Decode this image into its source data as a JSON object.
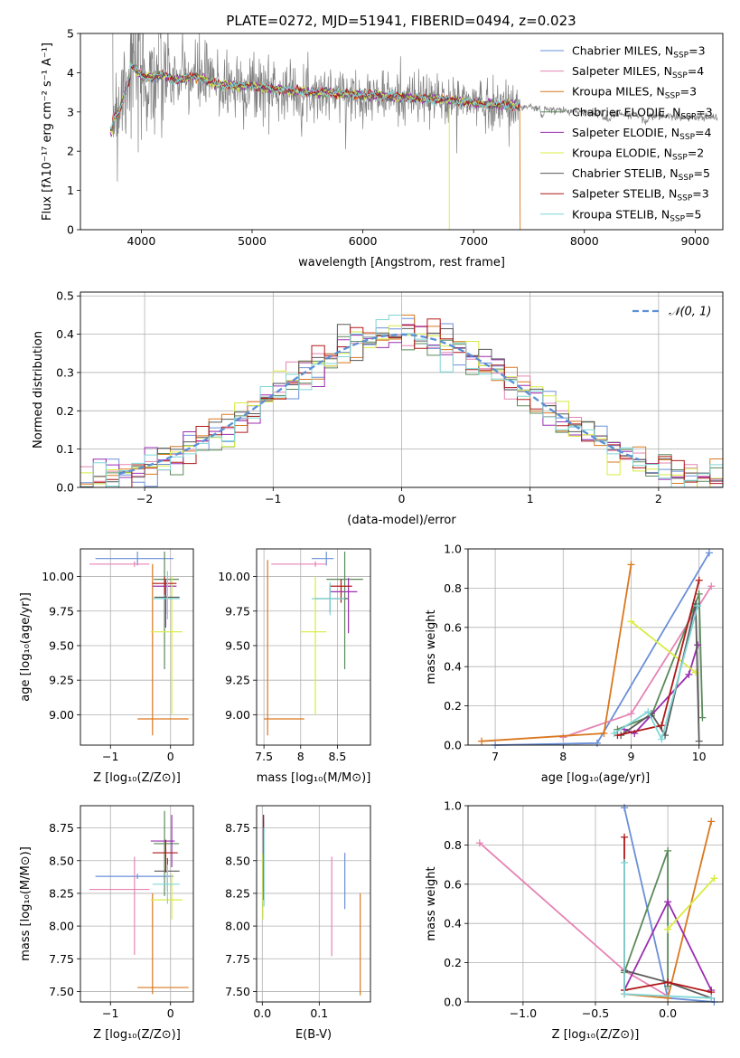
{
  "figure_title": "PLATE=0272, MJD=51941, FIBERID=0494, z=0.023",
  "colors": {
    "Chabrier MILES": "#6a8fd8",
    "Salpeter MILES": "#e683b4",
    "Kroupa MILES": "#d9781f",
    "Chabrier ELODIE": "#5b8a5b",
    "Salpeter ELODIE": "#9a2fb0",
    "Kroupa ELODIE": "#d8ec40",
    "Chabrier STELIB": "#5a5a5a",
    "Salpeter STELIB": "#b01818",
    "Kroupa STELIB": "#7fd6d6",
    "data": "#808080",
    "normal": "#5b8fd6",
    "grid": "#b0b0b0"
  },
  "chart_data": [
    {
      "id": "spectrum",
      "type": "line",
      "title": "PLATE=0272, MJD=51941, FIBERID=0494, z=0.023",
      "xlabel": "wavelength [Angstrom, rest frame]",
      "ylabel": "Flux [fλ10⁻¹⁷ erg cm⁻² s⁻¹ A⁻¹]",
      "xlim": [
        3450,
        9250
      ],
      "ylim": [
        0,
        5
      ],
      "xticks": [
        4000,
        5000,
        6000,
        7000,
        8000,
        9000
      ],
      "yticks": [
        0,
        1,
        2,
        3,
        4,
        5
      ],
      "grid": false,
      "legend_position": "top-right",
      "data_series": {
        "name": "",
        "x": [
          3740,
          3800,
          3850,
          3900,
          3950,
          4000,
          4100,
          4200,
          4300,
          4500,
          4700,
          5000,
          5300,
          5600,
          5900,
          6200,
          6500,
          6800,
          7100,
          7400,
          7700,
          8000,
          8300,
          8600,
          8900,
          9200
        ],
        "y": [
          3.1,
          3.3,
          3.8,
          4.2,
          4.1,
          3.9,
          3.9,
          3.95,
          3.8,
          3.9,
          3.7,
          3.65,
          3.55,
          3.5,
          3.45,
          3.4,
          3.35,
          3.3,
          3.2,
          3.15,
          3.05,
          3.0,
          2.95,
          2.9,
          2.88,
          2.85
        ]
      },
      "legend": [
        {
          "label": "Chabrier MILES, N",
          "sub": "SSP",
          "suffix": "=3"
        },
        {
          "label": "Salpeter MILES, N",
          "sub": "SSP",
          "suffix": "=4"
        },
        {
          "label": "Kroupa MILES, N",
          "sub": "SSP",
          "suffix": "=3"
        },
        {
          "label": "Chabrier ELODIE, N",
          "sub": "SSP",
          "suffix": "=3"
        },
        {
          "label": "Salpeter ELODIE, N",
          "sub": "SSP",
          "suffix": "=4"
        },
        {
          "label": "Kroupa ELODIE, N",
          "sub": "SSP",
          "suffix": "=2"
        },
        {
          "label": "Chabrier STELIB, N",
          "sub": "SSP",
          "suffix": "=5"
        },
        {
          "label": "Salpeter STELIB, N",
          "sub": "SSP",
          "suffix": "=3"
        },
        {
          "label": "Kroupa STELIB, N",
          "sub": "SSP",
          "suffix": "=5"
        }
      ],
      "model_series_names": [
        "Chabrier MILES",
        "Salpeter MILES",
        "Kroupa MILES",
        "Chabrier ELODIE",
        "Salpeter ELODIE",
        "Kroupa ELODIE",
        "Chabrier STELIB",
        "Salpeter STELIB",
        "Kroupa STELIB"
      ]
    },
    {
      "id": "residuals",
      "type": "histogram",
      "xlabel": "(data-model)/error",
      "ylabel": "Normed distribution",
      "xlim": [
        -2.5,
        2.5
      ],
      "ylim": [
        0,
        0.51
      ],
      "xticks": [
        -2,
        -1,
        0,
        1,
        2
      ],
      "yticks": [
        0.0,
        0.1,
        0.2,
        0.3,
        0.4,
        0.5
      ],
      "grid": true,
      "legend_position": "top-right",
      "legend_label": "𝒩(0, 1)",
      "bin_width": 0.1,
      "normal": {
        "mean": 0,
        "sigma": 1
      }
    },
    {
      "id": "age-vs-Z",
      "type": "errorbar",
      "xlabel": "Z [log₁₀(Z/Z⊙)]",
      "ylabel": "age  [log₁₀(age/yr)]",
      "xlim": [
        -1.5,
        0.38
      ],
      "ylim": [
        8.78,
        10.2
      ],
      "xticks": [
        -1,
        0
      ],
      "yticks": [
        9.0,
        9.25,
        9.5,
        9.75,
        10.0
      ],
      "grid": true,
      "points": [
        {
          "series": "Chabrier MILES",
          "x": -0.55,
          "xerr": [
            0.7,
            0.6
          ],
          "y": 10.13,
          "yerr": [
            0.05,
            0.05
          ]
        },
        {
          "series": "Salpeter MILES",
          "x": -0.6,
          "xerr": [
            0.75,
            0.25
          ],
          "y": 10.09,
          "yerr": [
            0.02,
            0.02
          ]
        },
        {
          "series": "Kroupa MILES",
          "x": -0.3,
          "xerr": [
            0.25,
            0.6
          ],
          "y": 8.97,
          "yerr": [
            0.12,
            1.12
          ]
        },
        {
          "series": "Chabrier ELODIE",
          "x": -0.1,
          "xerr": [
            0.18,
            0.24
          ],
          "y": 9.98,
          "yerr": [
            0.65,
            0.2
          ]
        },
        {
          "series": "Salpeter ELODIE",
          "x": -0.08,
          "xerr": [
            0.22,
            0.18
          ],
          "y": 9.93,
          "yerr": [
            0.3,
            0.05
          ]
        },
        {
          "series": "Kroupa ELODIE",
          "x": 0.02,
          "xerr": [
            0.35,
            0.18
          ],
          "y": 9.6,
          "yerr": [
            0.6,
            0.4
          ]
        },
        {
          "series": "Chabrier STELIB",
          "x": -0.05,
          "xerr": [
            0.22,
            0.2
          ],
          "y": 9.85,
          "yerr": [
            0.12,
            0.1
          ]
        },
        {
          "series": "Salpeter STELIB",
          "x": -0.1,
          "xerr": [
            0.2,
            0.2
          ],
          "y": 9.95,
          "yerr": [
            0.08,
            0.05
          ]
        },
        {
          "series": "Kroupa STELIB",
          "x": -0.05,
          "xerr": [
            0.25,
            0.2
          ],
          "y": 9.84,
          "yerr": [
            0.15,
            0.2
          ]
        }
      ]
    },
    {
      "id": "age-vs-mass",
      "type": "errorbar",
      "xlabel": "mass [log₁₀(M/M⊙)]",
      "ylabel": "",
      "xlim": [
        7.4,
        8.95
      ],
      "ylim": [
        8.78,
        10.2
      ],
      "xticks": [
        7.5,
        8.0,
        8.5
      ],
      "yticks": [
        9.0,
        9.25,
        9.5,
        9.75,
        10.0
      ],
      "grid": true,
      "points": [
        {
          "series": "Chabrier MILES",
          "x": 8.35,
          "xerr": [
            0.2,
            0.1
          ],
          "y": 10.13,
          "yerr": [
            0.05,
            0.05
          ]
        },
        {
          "series": "Salpeter MILES",
          "x": 8.2,
          "xerr": [
            0.6,
            0.15
          ],
          "y": 10.09,
          "yerr": [
            0.02,
            0.02
          ]
        },
        {
          "series": "Kroupa MILES",
          "x": 7.55,
          "xerr": [
            0.05,
            0.5
          ],
          "y": 8.97,
          "yerr": [
            0.12,
            1.15
          ]
        },
        {
          "series": "Chabrier ELODIE",
          "x": 8.6,
          "xerr": [
            0.25,
            0.25
          ],
          "y": 9.98,
          "yerr": [
            0.65,
            0.2
          ]
        },
        {
          "series": "Salpeter ELODIE",
          "x": 8.65,
          "xerr": [
            0.25,
            0.12
          ],
          "y": 9.89,
          "yerr": [
            0.3,
            0.1
          ]
        },
        {
          "series": "Kroupa ELODIE",
          "x": 8.2,
          "xerr": [
            0.2,
            0.15
          ],
          "y": 9.6,
          "yerr": [
            0.6,
            0.4
          ]
        },
        {
          "series": "Chabrier STELIB",
          "x": 8.4,
          "xerr": [
            0.2,
            0.25
          ],
          "y": 9.84,
          "yerr": [
            0.1,
            0.1
          ]
        },
        {
          "series": "Salpeter STELIB",
          "x": 8.55,
          "xerr": [
            0.15,
            0.15
          ],
          "y": 9.93,
          "yerr": [
            0.12,
            0.05
          ]
        },
        {
          "series": "Kroupa STELIB",
          "x": 8.4,
          "xerr": [
            0.25,
            0.2
          ],
          "y": 9.84,
          "yerr": [
            0.12,
            0.12
          ]
        }
      ]
    },
    {
      "id": "weight-vs-age",
      "type": "line",
      "xlabel": "age  [log₁₀(age/yr)]",
      "ylabel": "mass weight",
      "xlim": [
        6.6,
        10.35
      ],
      "ylim": [
        0,
        1
      ],
      "xticks": [
        7,
        8,
        9,
        10
      ],
      "yticks": [
        0.0,
        0.2,
        0.4,
        0.6,
        0.8,
        1.0
      ],
      "grid": true,
      "series": [
        {
          "name": "Chabrier MILES",
          "x": [
            7.0,
            8.5,
            10.15
          ],
          "y": [
            0.0,
            0.01,
            0.98
          ]
        },
        {
          "name": "Salpeter MILES",
          "x": [
            8.0,
            9.0,
            10.18
          ],
          "y": [
            0.04,
            0.16,
            0.81
          ]
        },
        {
          "name": "Kroupa MILES",
          "x": [
            6.8,
            8.6,
            9.0
          ],
          "y": [
            0.02,
            0.06,
            0.92
          ]
        },
        {
          "name": "Chabrier ELODIE",
          "x": [
            8.8,
            9.3,
            10.0,
            10.05
          ],
          "y": [
            0.08,
            0.15,
            0.77,
            0.14
          ]
        },
        {
          "name": "Salpeter ELODIE",
          "x": [
            8.9,
            9.05,
            9.85,
            9.98
          ],
          "y": [
            0.08,
            0.06,
            0.36,
            0.51
          ]
        },
        {
          "name": "Kroupa ELODIE",
          "x": [
            9.0,
            9.95
          ],
          "y": [
            0.63,
            0.37
          ]
        },
        {
          "name": "Chabrier STELIB",
          "x": [
            8.85,
            9.3,
            9.5,
            9.95,
            10.0
          ],
          "y": [
            0.05,
            0.16,
            0.05,
            0.72,
            0.02
          ]
        },
        {
          "name": "Salpeter STELIB",
          "x": [
            8.8,
            9.45,
            10.0
          ],
          "y": [
            0.05,
            0.1,
            0.84
          ]
        },
        {
          "name": "Kroupa STELIB",
          "x": [
            8.75,
            9.25,
            9.45,
            9.98
          ],
          "y": [
            0.06,
            0.17,
            0.03,
            0.71
          ]
        }
      ]
    },
    {
      "id": "mass-vs-Z",
      "type": "errorbar",
      "xlabel": "Z [log₁₀(Z/Z⊙)]",
      "ylabel": "mass [log₁₀(M/M⊙)]",
      "xlim": [
        -1.5,
        0.38
      ],
      "ylim": [
        7.42,
        8.92
      ],
      "xticks": [
        -1,
        0
      ],
      "yticks": [
        7.5,
        7.75,
        8.0,
        8.25,
        8.5,
        8.75
      ],
      "grid": true,
      "points": [
        {
          "series": "Chabrier MILES",
          "x": -0.55,
          "xerr": [
            0.7,
            0.6
          ],
          "y": 8.38,
          "yerr": [
            0.02,
            0.02
          ]
        },
        {
          "series": "Salpeter MILES",
          "x": -0.6,
          "xerr": [
            0.75,
            0.25
          ],
          "y": 8.28,
          "yerr": [
            0.5,
            0.25
          ]
        },
        {
          "series": "Kroupa MILES",
          "x": -0.3,
          "xerr": [
            0.25,
            0.6
          ],
          "y": 7.53,
          "yerr": [
            0.05,
            0.72
          ]
        },
        {
          "series": "Chabrier ELODIE",
          "x": -0.1,
          "xerr": [
            0.18,
            0.24
          ],
          "y": 8.63,
          "yerr": [
            0.4,
            0.25
          ]
        },
        {
          "series": "Salpeter ELODIE",
          "x": 0.02,
          "xerr": [
            0.35,
            0.05
          ],
          "y": 8.65,
          "yerr": [
            0.2,
            0.2
          ]
        },
        {
          "series": "Kroupa ELODIE",
          "x": 0.02,
          "xerr": [
            0.35,
            0.18
          ],
          "y": 8.2,
          "yerr": [
            0.15,
            0.2
          ]
        },
        {
          "series": "Chabrier STELIB",
          "x": -0.05,
          "xerr": [
            0.22,
            0.2
          ],
          "y": 8.42,
          "yerr": [
            0.15,
            0.1
          ]
        },
        {
          "series": "Salpeter STELIB",
          "x": -0.08,
          "xerr": [
            0.22,
            0.2
          ],
          "y": 8.56,
          "yerr": [
            0.15,
            0.1
          ]
        },
        {
          "series": "Kroupa STELIB",
          "x": -0.05,
          "xerr": [
            0.25,
            0.2
          ],
          "y": 8.32,
          "yerr": [
            0.15,
            0.15
          ]
        }
      ]
    },
    {
      "id": "mass-vs-ebv",
      "type": "errorbar",
      "xlabel": "E(B-V)",
      "ylabel": "",
      "xlim": [
        -0.01,
        0.19
      ],
      "ylim": [
        7.42,
        8.92
      ],
      "xticks": [
        0.0,
        0.1
      ],
      "xtick_labels": [
        "0.0",
        "0.1"
      ],
      "yticks": [
        7.5,
        7.75,
        8.0,
        8.25,
        8.5,
        8.75
      ],
      "grid": true,
      "points": [
        {
          "series": "Chabrier MILES",
          "x": 0.145,
          "xerr": [
            0,
            0
          ],
          "y": 8.38,
          "yerr": [
            0.25,
            0.18
          ]
        },
        {
          "series": "Salpeter MILES",
          "x": 0.122,
          "xerr": [
            0,
            0
          ],
          "y": 8.15,
          "yerr": [
            0.38,
            0.38
          ]
        },
        {
          "series": "Kroupa MILES",
          "x": 0.172,
          "xerr": [
            0,
            0
          ],
          "y": 7.85,
          "yerr": [
            0.38,
            0.4
          ]
        },
        {
          "series": "Chabrier ELODIE",
          "x": 0.002,
          "xerr": [
            0,
            0
          ],
          "y": 8.6,
          "yerr": [
            0.3,
            0.25
          ]
        },
        {
          "series": "Salpeter ELODIE",
          "x": 0.002,
          "xerr": [
            0,
            0
          ],
          "y": 8.75,
          "yerr": [
            0.1,
            0.1
          ]
        },
        {
          "series": "Kroupa ELODIE",
          "x": 0.001,
          "xerr": [
            0,
            0
          ],
          "y": 8.3,
          "yerr": [
            0.25,
            0.25
          ]
        },
        {
          "series": "Chabrier STELIB",
          "x": 0.002,
          "xerr": [
            0,
            0
          ],
          "y": 8.5,
          "yerr": [
            0.3,
            0.3
          ]
        },
        {
          "series": "Salpeter STELIB",
          "x": 0.002,
          "xerr": [
            0,
            0
          ],
          "y": 8.7,
          "yerr": [
            0.15,
            0.15
          ]
        },
        {
          "series": "Kroupa STELIB",
          "x": 0.003,
          "xerr": [
            0,
            0
          ],
          "y": 8.45,
          "yerr": [
            0.3,
            0.3
          ]
        }
      ]
    },
    {
      "id": "weight-vs-Z",
      "type": "line",
      "xlabel": "Z [log₁₀(Z/Z⊙)]",
      "ylabel": "mass weight",
      "xlim": [
        -1.38,
        0.38
      ],
      "ylim": [
        0,
        1
      ],
      "xticks": [
        -1.0,
        -0.5,
        0.0
      ],
      "xtick_labels": [
        "−1.0",
        "−0.5",
        "0.0"
      ],
      "yticks": [
        0.0,
        0.2,
        0.4,
        0.6,
        0.8,
        1.0
      ],
      "grid": true,
      "series": [
        {
          "name": "Chabrier MILES",
          "x": [
            -0.3,
            0.0,
            0.32
          ],
          "y": [
            0.99,
            0.02,
            0.0
          ]
        },
        {
          "name": "Salpeter MILES",
          "x": [
            -1.3,
            -0.3,
            0.0
          ],
          "y": [
            0.81,
            0.16,
            0.03
          ]
        },
        {
          "name": "Kroupa MILES",
          "x": [
            -0.3,
            0.0,
            0.3
          ],
          "y": [
            0.04,
            0.02,
            0.92
          ]
        },
        {
          "name": "Chabrier ELODIE",
          "x": [
            -0.3,
            0.0,
            0.0
          ],
          "y": [
            0.15,
            0.77,
            0.08
          ]
        },
        {
          "name": "Salpeter ELODIE",
          "x": [
            -0.3,
            0.0,
            0.3
          ],
          "y": [
            0.06,
            0.51,
            0.06
          ]
        },
        {
          "name": "Kroupa ELODIE",
          "x": [
            0.0,
            0.32
          ],
          "y": [
            0.37,
            0.63
          ]
        },
        {
          "name": "Chabrier STELIB",
          "x": [
            -0.3,
            0.0,
            0.3
          ],
          "y": [
            0.16,
            0.1,
            0.02
          ]
        },
        {
          "name": "Salpeter STELIB",
          "x": [
            -0.3,
            -0.3,
            0.0,
            0.3
          ],
          "y": [
            0.84,
            0.06,
            0.1,
            0.05
          ]
        },
        {
          "name": "Kroupa STELIB",
          "x": [
            -0.3,
            -0.3,
            0.3
          ],
          "y": [
            0.71,
            0.04,
            0.02
          ]
        }
      ]
    }
  ]
}
